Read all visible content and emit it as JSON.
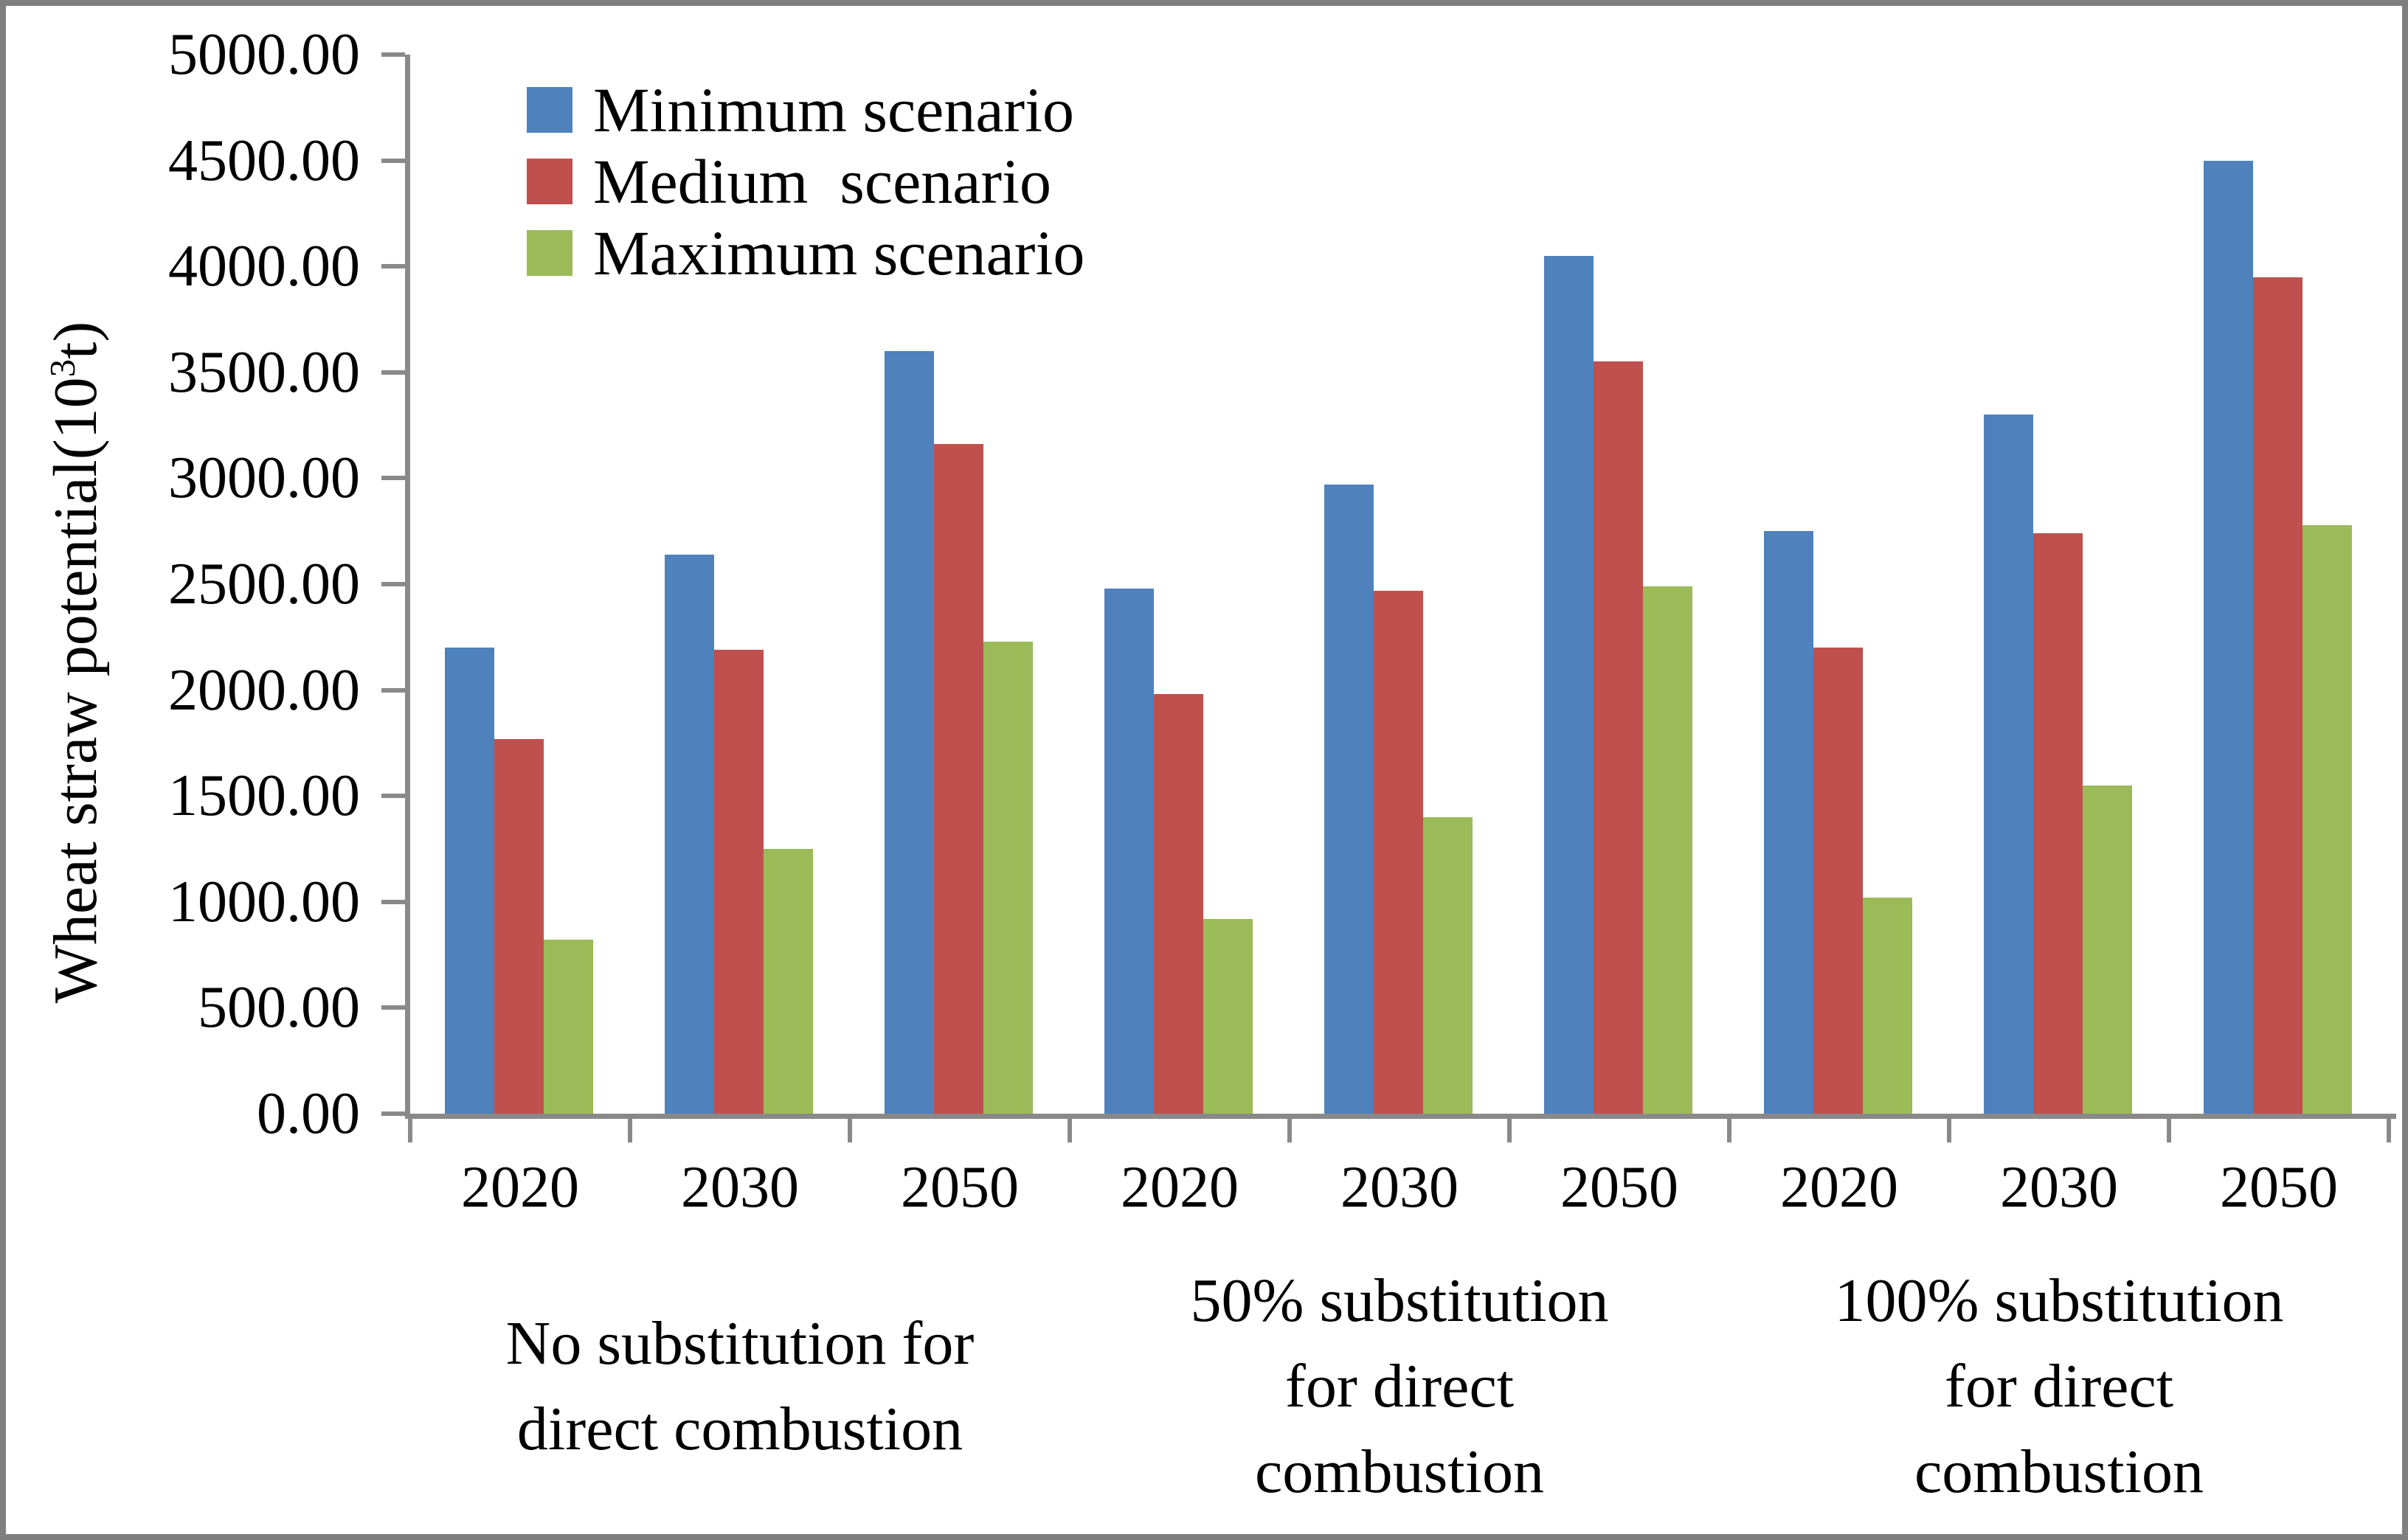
{
  "chart_data": {
    "type": "bar",
    "title": "",
    "xlabel": "",
    "ylabel": {
      "prefix": "Wheat straw potential(10",
      "superscript": "3",
      "suffix": "t)"
    },
    "ylim": [
      0,
      5000
    ],
    "ytick_step": 500,
    "y_tick_labels": [
      "0.00",
      "500.00",
      "1000.00",
      "1500.00",
      "2000.00",
      "2500.00",
      "3000.00",
      "3500.00",
      "4000.00",
      "4500.00",
      "5000.00"
    ],
    "grid": "off",
    "legend_position": "top-left",
    "series": [
      {
        "name": "Minimum scenario",
        "color": "#4f81bd"
      },
      {
        "name": "Medium  scenario",
        "color": "#c0504d"
      },
      {
        "name": "Maximum scenario",
        "color": "#9bbb59"
      }
    ],
    "groups": [
      {
        "label_lines": [
          "No substitution for",
          "direct combustion"
        ],
        "clusters": [
          {
            "year": "2020",
            "values": [
              2200,
              1770,
              820
            ]
          },
          {
            "year": "2030",
            "values": [
              2640,
              2190,
              1250
            ]
          },
          {
            "year": "2050",
            "values": [
              3600,
              3160,
              2230
            ]
          }
        ]
      },
      {
        "label_lines": [
          "50% substitution",
          "for direct",
          "combustion"
        ],
        "clusters": [
          {
            "year": "2020",
            "values": [
              2480,
              1980,
              920
            ]
          },
          {
            "year": "2030",
            "values": [
              2970,
              2470,
              1400
            ]
          },
          {
            "year": "2050",
            "values": [
              4050,
              3550,
              2490
            ]
          }
        ]
      },
      {
        "label_lines": [
          "100% substitution",
          "for direct",
          "combustion"
        ],
        "clusters": [
          {
            "year": "2020",
            "values": [
              2750,
              2200,
              1020
            ]
          },
          {
            "year": "2030",
            "values": [
              3300,
              2740,
              1550
            ]
          },
          {
            "year": "2050",
            "values": [
              4500,
              3950,
              2780
            ]
          }
        ]
      }
    ],
    "colors": {
      "axis": "#898989",
      "border": "#7f7f7f",
      "text": "#000000",
      "background": "#ffffff"
    }
  }
}
